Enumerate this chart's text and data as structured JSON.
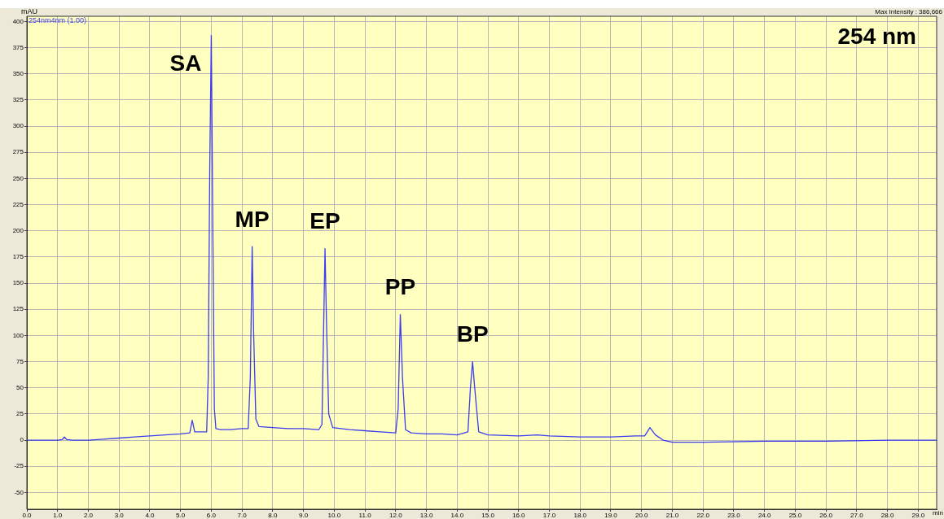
{
  "chart_data": {
    "type": "line",
    "title": "254 nm",
    "ylabel": "mAU",
    "xlabel": "min",
    "annotations": [
      "Max Intensity : 386,666",
      {
        "text": "SA",
        "x": 6.0,
        "y": 386.7
      },
      {
        "text": "MP",
        "x": 7.33,
        "y": 185
      },
      {
        "text": "EP",
        "x": 9.7,
        "y": 183
      },
      {
        "text": "PP",
        "x": 12.15,
        "y": 120
      },
      {
        "text": "BP",
        "x": 14.5,
        "y": 75
      }
    ],
    "xlim": [
      0,
      29.6
    ],
    "xticks": [
      {
        "value": 0,
        "label": "0.0"
      },
      {
        "value": 1,
        "label": "1.0"
      },
      {
        "value": 2,
        "label": "2.0"
      },
      {
        "value": 3,
        "label": "3.0"
      },
      {
        "value": 4,
        "label": "4.0"
      },
      {
        "value": 5,
        "label": "5.0"
      },
      {
        "value": 6,
        "label": "6.0"
      },
      {
        "value": 7,
        "label": "7.0"
      },
      {
        "value": 8,
        "label": "8.0"
      },
      {
        "value": 9,
        "label": "9.0"
      },
      {
        "value": 10,
        "label": "10.0"
      },
      {
        "value": 11,
        "label": "11.0"
      },
      {
        "value": 12,
        "label": "12.0"
      },
      {
        "value": 13,
        "label": "13.0"
      },
      {
        "value": 14,
        "label": "14.0"
      },
      {
        "value": 15,
        "label": "15.0"
      },
      {
        "value": 16,
        "label": "16.0"
      },
      {
        "value": 17,
        "label": "17.0"
      },
      {
        "value": 18,
        "label": "18.0"
      },
      {
        "value": 19,
        "label": "19.0"
      },
      {
        "value": 20,
        "label": "20.0"
      },
      {
        "value": 21,
        "label": "21.0"
      },
      {
        "value": 22,
        "label": "22.0"
      },
      {
        "value": 23,
        "label": "23.0"
      },
      {
        "value": 24,
        "label": "24.0"
      },
      {
        "value": 25,
        "label": "25.0"
      },
      {
        "value": 26,
        "label": "26.0"
      },
      {
        "value": 27,
        "label": "27.0"
      },
      {
        "value": 28,
        "label": "28.0"
      },
      {
        "value": 29,
        "label": "29.0"
      }
    ],
    "ylim": [
      -66,
      405
    ],
    "yticks": [
      -50,
      -25,
      0,
      25,
      50,
      75,
      100,
      125,
      150,
      175,
      200,
      225,
      250,
      275,
      300,
      325,
      350,
      375,
      400
    ],
    "grid": true,
    "marker": "none",
    "line_style": "solid",
    "x": [
      0,
      0.5,
      1.0,
      1.15,
      1.22,
      1.3,
      1.5,
      2.0,
      2.5,
      3.0,
      3.5,
      4.0,
      4.5,
      5.0,
      5.3,
      5.38,
      5.46,
      5.6,
      5.85,
      5.9,
      5.95,
      6.0,
      6.05,
      6.1,
      6.15,
      6.3,
      6.6,
      7.0,
      7.2,
      7.27,
      7.33,
      7.38,
      7.45,
      7.55,
      8.0,
      8.5,
      9.0,
      9.5,
      9.6,
      9.65,
      9.7,
      9.75,
      9.82,
      9.95,
      10.5,
      11.0,
      11.5,
      12.0,
      12.08,
      12.15,
      12.22,
      12.32,
      12.5,
      13.0,
      13.5,
      14.0,
      14.35,
      14.43,
      14.5,
      14.57,
      14.7,
      15.0,
      16.0,
      16.6,
      17.0,
      18.0,
      19.0,
      19.8,
      20.1,
      20.27,
      20.45,
      20.7,
      21.0,
      21.5,
      22.0,
      24.0,
      26.0,
      28.0,
      29.6
    ],
    "series": [
      {
        "name": "254nm4nm (1.00)",
        "color": "#3c3cf0",
        "values": [
          0,
          0,
          0,
          0.5,
          3,
          0.5,
          0,
          0,
          1,
          2,
          3,
          4,
          5,
          6,
          7,
          19,
          8,
          8,
          8,
          60,
          260,
          386.7,
          200,
          30,
          11,
          10,
          10,
          11,
          11,
          60,
          185,
          100,
          20,
          13,
          12,
          11,
          11,
          10,
          15,
          100,
          183,
          110,
          25,
          12,
          10,
          9,
          8,
          7,
          30,
          120,
          60,
          10,
          7,
          6,
          6,
          5,
          8,
          50,
          75,
          50,
          8,
          5,
          4,
          5,
          4,
          3,
          3,
          4,
          4,
          12,
          5,
          0,
          -2,
          -2,
          -2,
          -1,
          -1,
          0,
          0
        ]
      }
    ]
  }
}
